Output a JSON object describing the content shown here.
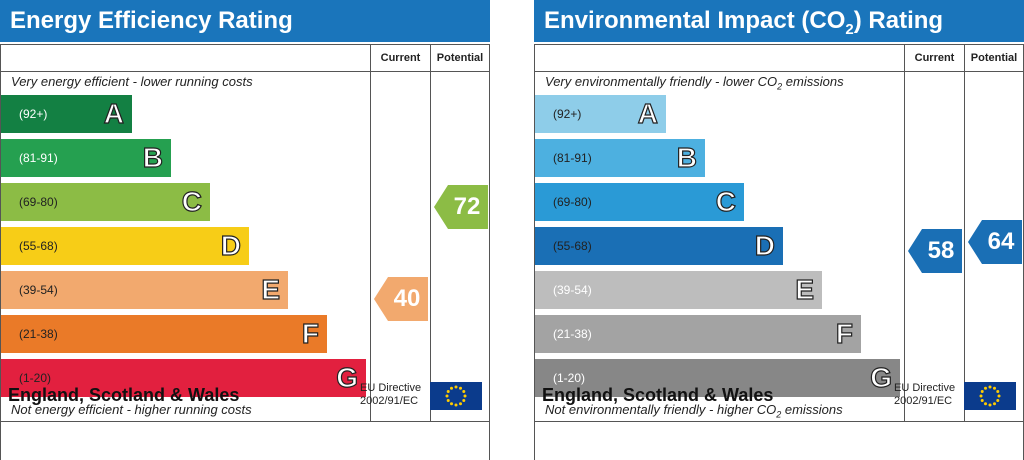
{
  "chart_data": [
    {
      "type": "table",
      "title": "Energy Efficiency Rating",
      "columns": [
        "Current",
        "Potential"
      ],
      "top_caption": "Very energy efficient - lower running costs",
      "bottom_caption": "Not energy efficient - higher running costs",
      "bands": [
        {
          "range": "(92+)",
          "letter": "A",
          "color": "#138043"
        },
        {
          "range": "(81-91)",
          "letter": "B",
          "color": "#25a050"
        },
        {
          "range": "(69-80)",
          "letter": "C",
          "color": "#8cbc45"
        },
        {
          "range": "(55-68)",
          "letter": "D",
          "color": "#f7cd17"
        },
        {
          "range": "(39-54)",
          "letter": "E",
          "color": "#f2a96e"
        },
        {
          "range": "(21-38)",
          "letter": "F",
          "color": "#ea7a28"
        },
        {
          "range": "(1-20)",
          "letter": "G",
          "color": "#e2203f"
        }
      ],
      "current": {
        "value": 40,
        "band": "E",
        "color": "#f2a96e"
      },
      "potential": {
        "value": 72,
        "band": "C",
        "color": "#8cbc45"
      },
      "footer": "England, Scotland & Wales",
      "directive_line1": "EU Directive",
      "directive_line2": "2002/91/EC"
    },
    {
      "type": "table",
      "title_pre": "Environmental Impact (CO",
      "title_sub": "2",
      "title_post": ") Rating",
      "columns": [
        "Current",
        "Potential"
      ],
      "top_caption_pre": "Very environmentally friendly - lower CO",
      "top_caption_sub": "2",
      "top_caption_post": " emissions",
      "bottom_caption_pre": "Not environmentally friendly - higher CO",
      "bottom_caption_sub": "2",
      "bottom_caption_post": " emissions",
      "bands": [
        {
          "range": "(92+)",
          "letter": "A",
          "color": "#8ecde9"
        },
        {
          "range": "(81-91)",
          "letter": "B",
          "color": "#4db0e0"
        },
        {
          "range": "(69-80)",
          "letter": "C",
          "color": "#2a9ad6"
        },
        {
          "range": "(55-68)",
          "letter": "D",
          "color": "#1a6fb5"
        },
        {
          "range": "(39-54)",
          "letter": "E",
          "color": "#bdbdbd"
        },
        {
          "range": "(21-38)",
          "letter": "F",
          "color": "#a3a3a3"
        },
        {
          "range": "(1-20)",
          "letter": "G",
          "color": "#878787"
        }
      ],
      "current": {
        "value": 58,
        "band": "D",
        "color": "#1a6fb5"
      },
      "potential": {
        "value": 64,
        "band": "D",
        "color": "#1a6fb5"
      },
      "footer": "England, Scotland & Wales",
      "directive_line1": "EU Directive",
      "directive_line2": "2002/91/EC"
    }
  ],
  "eu_flag_icon": "eu-flag-icon",
  "eu_flag_colors": {
    "field": "#0b3b8c",
    "stars": "#ffcc00"
  }
}
